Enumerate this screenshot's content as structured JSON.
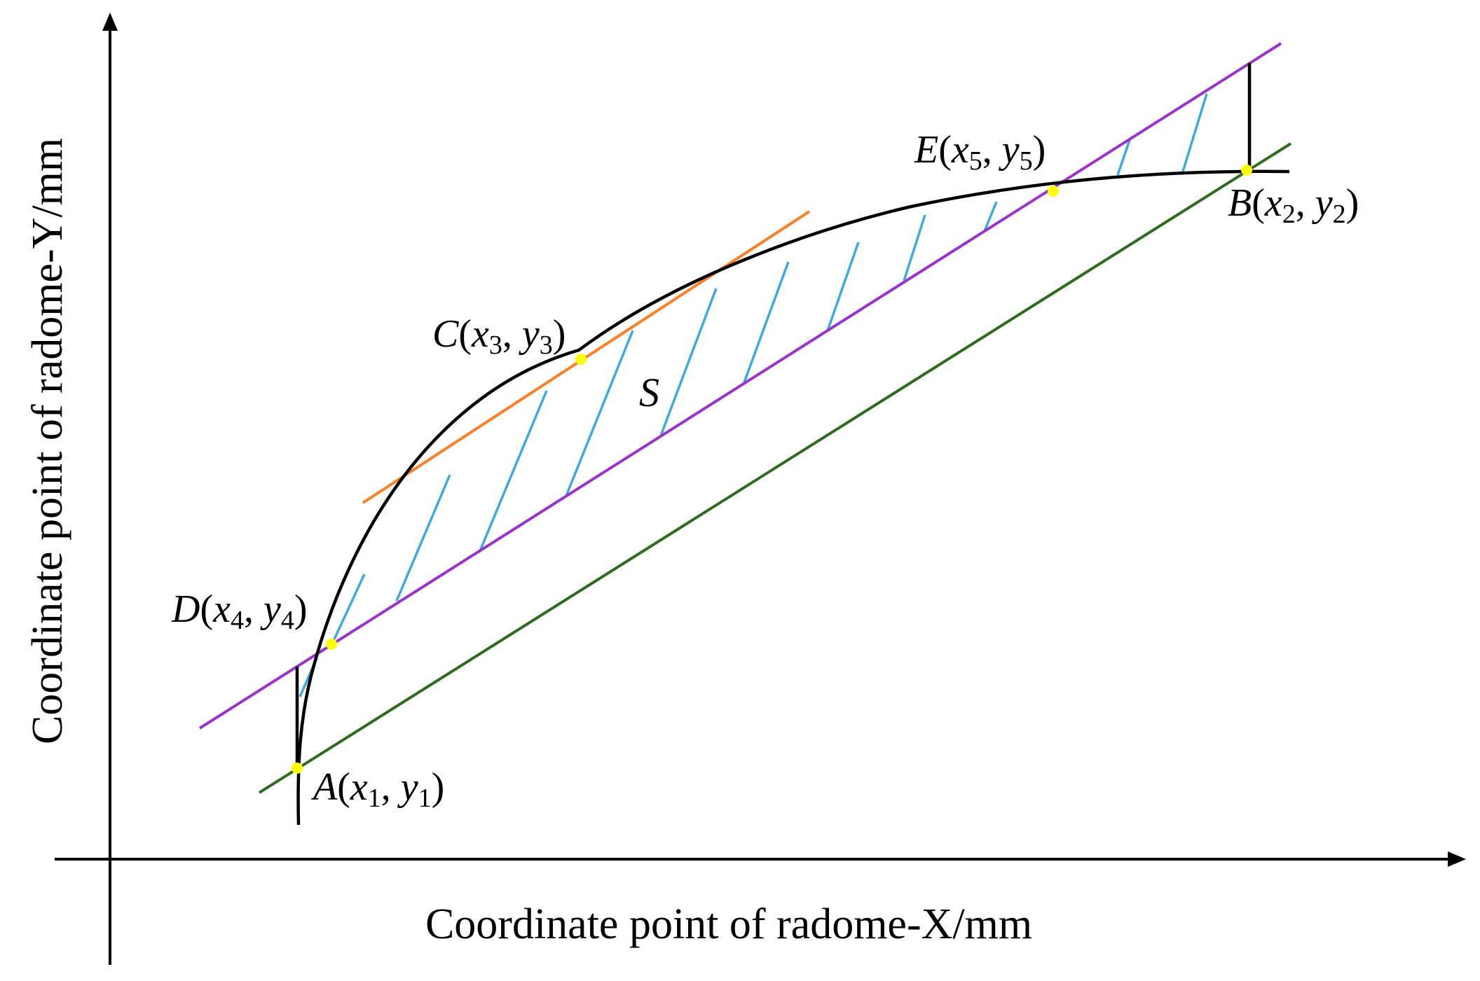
{
  "axes": {
    "x_title": "Coordinate point of radome-X/mm",
    "y_title": "Coordinate point of radome-Y/mm"
  },
  "points": [
    {
      "id": "A",
      "letter": "A",
      "x_var": "x",
      "x_sub": "1",
      "y_var": "y",
      "y_sub": "1"
    },
    {
      "id": "B",
      "letter": "B",
      "x_var": "x",
      "x_sub": "2",
      "y_var": "y",
      "y_sub": "2"
    },
    {
      "id": "C",
      "letter": "C",
      "x_var": "x",
      "x_sub": "3",
      "y_var": "y",
      "y_sub": "3"
    },
    {
      "id": "D",
      "letter": "D",
      "x_var": "x",
      "x_sub": "4",
      "y_var": "y",
      "y_sub": "4"
    },
    {
      "id": "E",
      "letter": "E",
      "x_var": "x",
      "x_sub": "5",
      "y_var": "y",
      "y_sub": "5"
    }
  ],
  "area_label": "S",
  "colors": {
    "curve": "#000000",
    "tangent_line": "#ff7f27",
    "secant_line": "#9933cc",
    "chord_line": "#2e6b1e",
    "hatch": "#3fa9e0",
    "point_marker": "#ffff00"
  }
}
